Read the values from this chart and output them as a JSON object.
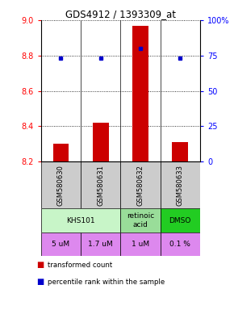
{
  "title": "GDS4912 / 1393309_at",
  "samples": [
    "GSM580630",
    "GSM580631",
    "GSM580632",
    "GSM580633"
  ],
  "bar_values": [
    8.3,
    8.42,
    8.97,
    8.31
  ],
  "bar_base": 8.2,
  "blue_dot_values": [
    73,
    73,
    80,
    73
  ],
  "ylim_left": [
    8.2,
    9.0
  ],
  "ylim_right": [
    0,
    100
  ],
  "yticks_left": [
    8.2,
    8.4,
    8.6,
    8.8,
    9.0
  ],
  "yticks_right": [
    0,
    25,
    50,
    75,
    100
  ],
  "ytick_labels_right": [
    "0",
    "25",
    "50",
    "75",
    "100%"
  ],
  "bar_color": "#cc0000",
  "dot_color": "#0000cc",
  "agent_configs": [
    [
      0,
      1,
      "KHS101",
      "#c8f5c8"
    ],
    [
      2,
      2,
      "retinoic\nacid",
      "#99dd99"
    ],
    [
      3,
      3,
      "DMSO",
      "#22cc22"
    ]
  ],
  "dose_labels": [
    "5 uM",
    "1.7 uM",
    "1 uM",
    "0.1 %"
  ],
  "dose_color": "#dd88ee",
  "sample_bg_color": "#cccccc",
  "dotted_color": "#000000",
  "legend_items": [
    [
      "#cc0000",
      "transformed count"
    ],
    [
      "#0000cc",
      "percentile rank within the sample"
    ]
  ]
}
